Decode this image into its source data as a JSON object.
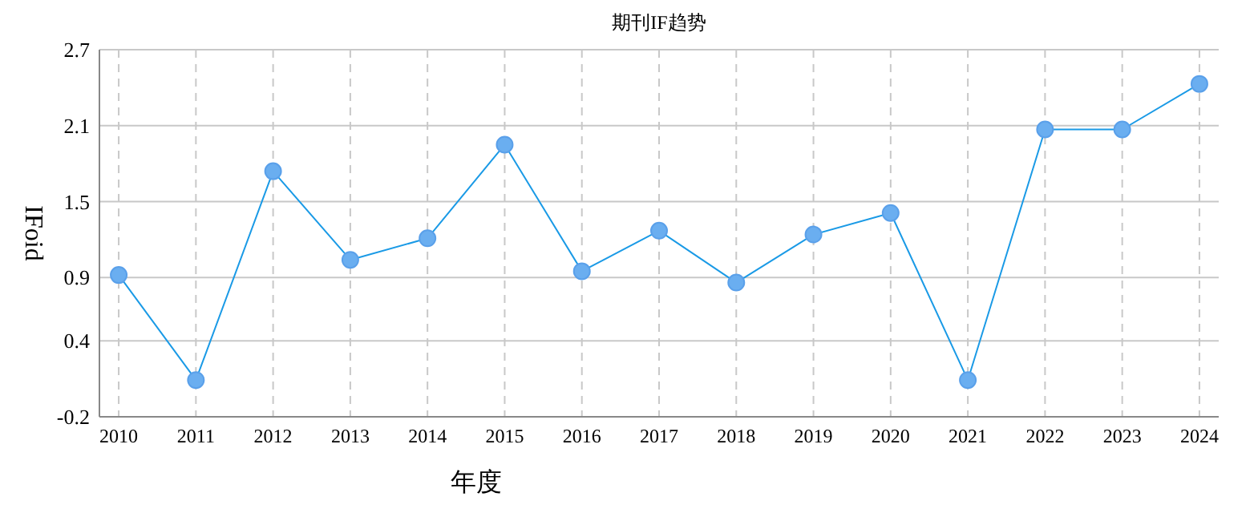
{
  "chart_data": {
    "type": "line",
    "title": "期刊IF趋势",
    "xlabel": "年度",
    "ylabel": "IFoid",
    "categories": [
      "2010",
      "2011",
      "2012",
      "2013",
      "2014",
      "2015",
      "2016",
      "2017",
      "2018",
      "2019",
      "2020",
      "2021",
      "2022",
      "2023",
      "2024"
    ],
    "series": [
      {
        "color": "#1a9ae6",
        "values": [
          0.92,
          0.09,
          1.74,
          1.04,
          1.21,
          1.95,
          0.95,
          1.27,
          0.86,
          1.24,
          1.41,
          0.09,
          2.07,
          2.07,
          2.43
        ]
      }
    ],
    "ylim": [
      -0.2,
      2.7
    ],
    "yticks": [
      -0.2,
      0.4,
      0.9,
      1.5,
      2.1,
      2.7
    ],
    "grid": true,
    "marker": "circle",
    "line_style": "solid"
  }
}
